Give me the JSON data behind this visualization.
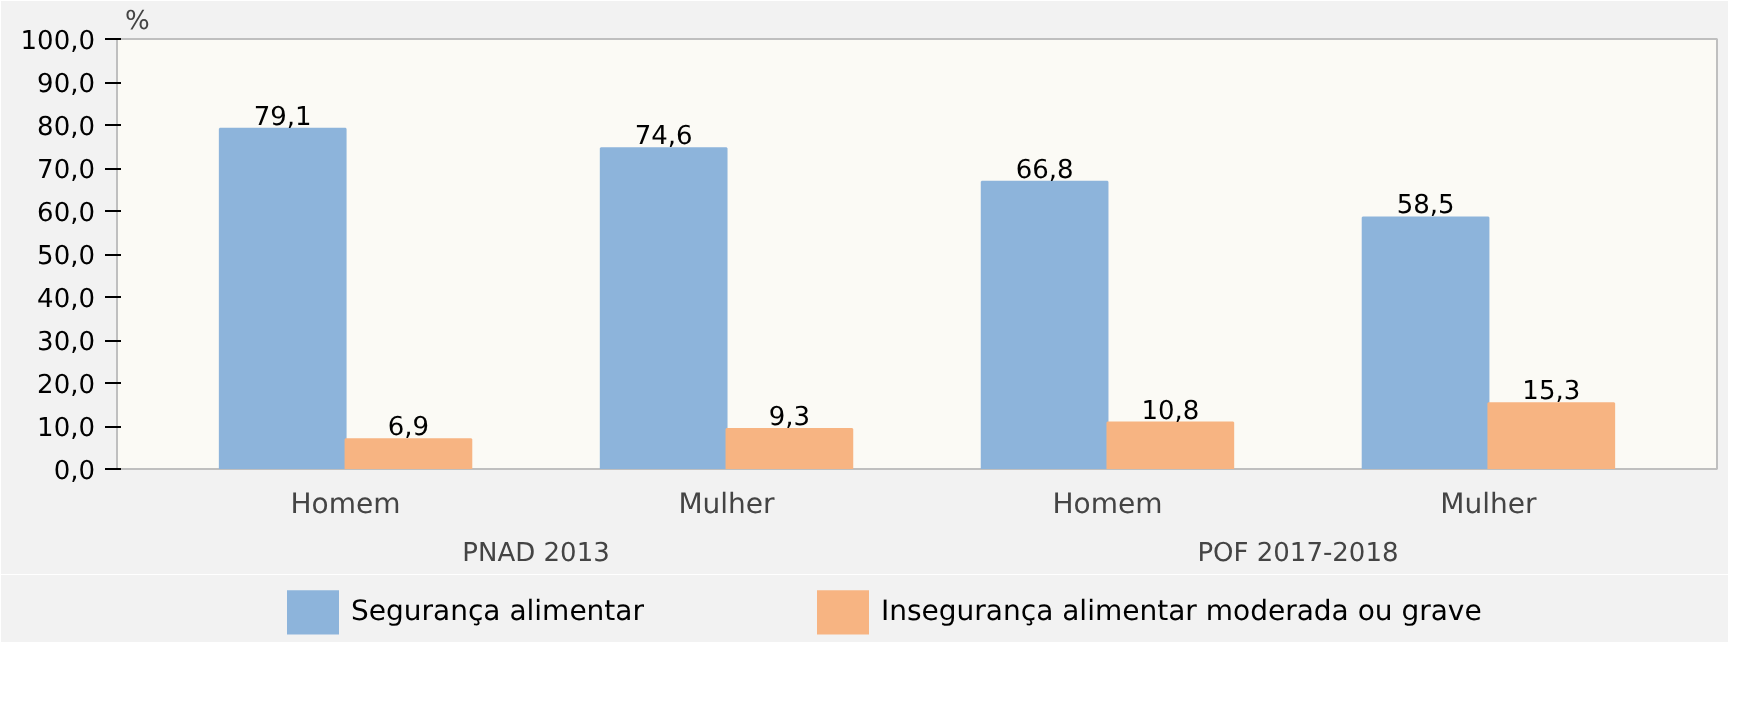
{
  "chart_data": {
    "type": "bar",
    "ylabel": "%",
    "categories": [
      "Homem",
      "Mulher",
      "Homem",
      "Mulher"
    ],
    "annotations": [
      "PNAD 2013",
      "POF 2017-2018"
    ],
    "series": [
      {
        "name": "Segurança alimentar",
        "color": "#8db4db",
        "values": [
          79.1,
          74.6,
          66.8,
          58.5
        ],
        "value_labels": [
          "79,1",
          "74,6",
          "66,8",
          "58,5"
        ]
      },
      {
        "name": "Insegurança alimentar moderada ou grave",
        "color": "#f7b482",
        "values": [
          6.9,
          9.3,
          10.8,
          15.3
        ],
        "value_labels": [
          "6,9",
          "9,3",
          "10,8",
          "15,3"
        ]
      }
    ],
    "ylim": [
      0,
      100
    ],
    "yticks": [
      {
        "value": 0,
        "label": "0,0"
      },
      {
        "value": 10,
        "label": "10,0"
      },
      {
        "value": 20,
        "label": "20,0"
      },
      {
        "value": 30,
        "label": "30,0"
      },
      {
        "value": 40,
        "label": "40,0"
      },
      {
        "value": 50,
        "label": "50,0"
      },
      {
        "value": 60,
        "label": "60,0"
      },
      {
        "value": 70,
        "label": "70,0"
      },
      {
        "value": 80,
        "label": "80,0"
      },
      {
        "value": 90,
        "label": "90,0"
      },
      {
        "value": 100,
        "label": "100,0"
      }
    ],
    "legend": "bottom"
  }
}
